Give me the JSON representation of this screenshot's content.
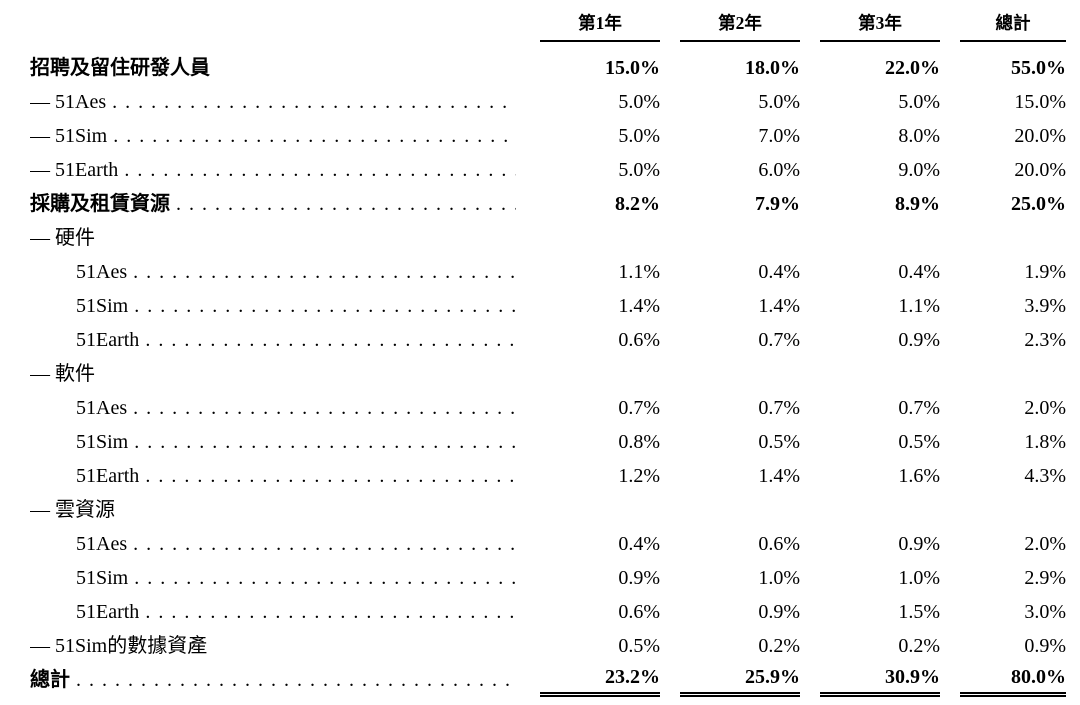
{
  "table": {
    "columns": [
      "第1年",
      "第2年",
      "第3年",
      "總計"
    ],
    "rows": [
      {
        "label": "招聘及留住研發人員",
        "bold": true,
        "dots": false,
        "indent": 0,
        "values": [
          "15.0%",
          "18.0%",
          "22.0%",
          "55.0%"
        ]
      },
      {
        "label": "— 51Aes",
        "bold": false,
        "dots": true,
        "indent": 0,
        "values": [
          "5.0%",
          "5.0%",
          "5.0%",
          "15.0%"
        ]
      },
      {
        "label": "— 51Sim",
        "bold": false,
        "dots": true,
        "indent": 0,
        "values": [
          "5.0%",
          "7.0%",
          "8.0%",
          "20.0%"
        ]
      },
      {
        "label": "— 51Earth",
        "bold": false,
        "dots": true,
        "indent": 0,
        "values": [
          "5.0%",
          "6.0%",
          "9.0%",
          "20.0%"
        ]
      },
      {
        "label": "採購及租賃資源",
        "bold": true,
        "dots": true,
        "indent": 0,
        "values": [
          "8.2%",
          "7.9%",
          "8.9%",
          "25.0%"
        ]
      },
      {
        "label": "— 硬件",
        "bold": false,
        "dots": false,
        "indent": 0,
        "values": [
          "",
          "",
          "",
          ""
        ]
      },
      {
        "label": "51Aes",
        "bold": false,
        "dots": true,
        "indent": 1,
        "values": [
          "1.1%",
          "0.4%",
          "0.4%",
          "1.9%"
        ]
      },
      {
        "label": "51Sim",
        "bold": false,
        "dots": true,
        "indent": 1,
        "values": [
          "1.4%",
          "1.4%",
          "1.1%",
          "3.9%"
        ]
      },
      {
        "label": "51Earth",
        "bold": false,
        "dots": true,
        "indent": 1,
        "values": [
          "0.6%",
          "0.7%",
          "0.9%",
          "2.3%"
        ]
      },
      {
        "label": "— 軟件",
        "bold": false,
        "dots": false,
        "indent": 0,
        "values": [
          "",
          "",
          "",
          ""
        ]
      },
      {
        "label": "51Aes",
        "bold": false,
        "dots": true,
        "indent": 1,
        "values": [
          "0.7%",
          "0.7%",
          "0.7%",
          "2.0%"
        ]
      },
      {
        "label": "51Sim",
        "bold": false,
        "dots": true,
        "indent": 1,
        "values": [
          "0.8%",
          "0.5%",
          "0.5%",
          "1.8%"
        ]
      },
      {
        "label": "51Earth",
        "bold": false,
        "dots": true,
        "indent": 1,
        "values": [
          "1.2%",
          "1.4%",
          "1.6%",
          "4.3%"
        ]
      },
      {
        "label": "— 雲資源",
        "bold": false,
        "dots": false,
        "indent": 0,
        "values": [
          "",
          "",
          "",
          ""
        ]
      },
      {
        "label": "51Aes",
        "bold": false,
        "dots": true,
        "indent": 1,
        "values": [
          "0.4%",
          "0.6%",
          "0.9%",
          "2.0%"
        ]
      },
      {
        "label": "51Sim",
        "bold": false,
        "dots": true,
        "indent": 1,
        "values": [
          "0.9%",
          "1.0%",
          "1.0%",
          "2.9%"
        ]
      },
      {
        "label": "51Earth",
        "bold": false,
        "dots": true,
        "indent": 1,
        "values": [
          "0.6%",
          "0.9%",
          "1.5%",
          "3.0%"
        ]
      },
      {
        "label": "— 51Sim的數據資產",
        "bold": false,
        "dots": false,
        "indent": 0,
        "values": [
          "0.5%",
          "0.2%",
          "0.2%",
          "0.9%"
        ]
      },
      {
        "label": "總計",
        "bold": true,
        "dots": true,
        "indent": 0,
        "values": [
          "23.2%",
          "25.9%",
          "30.9%",
          "80.0%"
        ],
        "rule": "double"
      }
    ]
  }
}
